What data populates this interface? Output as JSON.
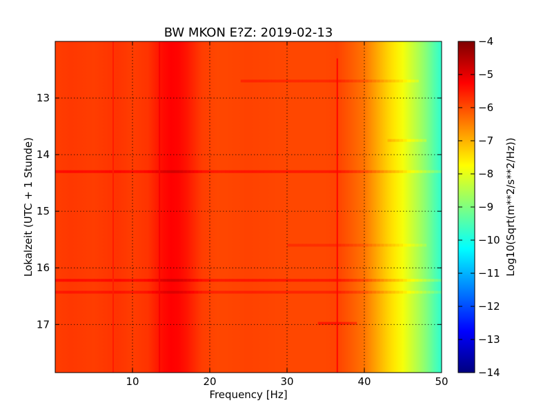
{
  "chart_data": {
    "type": "heatmap",
    "title": "BW MKON E?Z: 2019-02-13",
    "xlabel": "Frequency [Hz]",
    "ylabel": "Lokalzeit (UTC + 1 Stunde)",
    "xlim": [
      0,
      50
    ],
    "ylim": [
      12.0,
      17.85
    ],
    "y_inverted": true,
    "xticks": [
      10,
      20,
      30,
      40,
      50
    ],
    "yticks": [
      13,
      14,
      15,
      16,
      17
    ],
    "grid": true,
    "colorbar": {
      "label": "Log10(Sqrt(m**2/s**2/Hz))",
      "range": [
        -14,
        -4
      ],
      "ticks": [
        -4,
        -5,
        -6,
        -7,
        -8,
        -9,
        -10,
        -11,
        -12,
        -13,
        -14
      ],
      "colormap": "jet"
    },
    "spectrum_profile": {
      "frequency_hz": [
        0,
        2,
        5,
        8,
        10,
        12,
        13,
        14,
        15,
        16,
        17,
        18,
        19,
        21,
        25,
        30,
        35,
        36.5,
        38,
        40,
        41,
        42,
        43,
        44,
        45,
        46,
        47,
        48,
        49,
        50
      ],
      "log10_amplitude": [
        -5.85,
        -5.8,
        -5.85,
        -5.75,
        -5.85,
        -5.75,
        -5.55,
        -5.35,
        -5.25,
        -5.3,
        -5.45,
        -5.65,
        -5.85,
        -5.95,
        -5.9,
        -5.95,
        -5.95,
        -5.9,
        -6.1,
        -6.4,
        -6.7,
        -7.0,
        -7.3,
        -7.55,
        -7.85,
        -8.2,
        -8.55,
        -8.95,
        -9.4,
        -9.8
      ]
    },
    "horizontal_bands": [
      {
        "time": 14.3,
        "frequency_range": [
          0,
          50
        ],
        "delta": 0.45
      },
      {
        "time": 16.22,
        "frequency_range": [
          0,
          50
        ],
        "delta": 0.45
      },
      {
        "time": 16.43,
        "frequency_range": [
          0,
          50
        ],
        "delta": 0.35
      },
      {
        "time": 12.7,
        "frequency_range": [
          24,
          47
        ],
        "delta": 0.3
      },
      {
        "time": 13.75,
        "frequency_range": [
          43,
          48
        ],
        "delta": 0.35
      },
      {
        "time": 15.6,
        "frequency_range": [
          30,
          48
        ],
        "delta": 0.25
      },
      {
        "time": 16.98,
        "frequency_range": [
          34,
          39
        ],
        "delta": 0.45
      }
    ],
    "vertical_features": [
      {
        "frequency": 36.5,
        "time_range": [
          12.3,
          17.85
        ],
        "delta": 0.6
      },
      {
        "frequency": 7.5,
        "time_range": [
          12.0,
          17.85
        ],
        "delta": 0.25
      },
      {
        "frequency": 13.5,
        "time_range": [
          12.0,
          17.85
        ],
        "delta": 0.25
      }
    ]
  }
}
